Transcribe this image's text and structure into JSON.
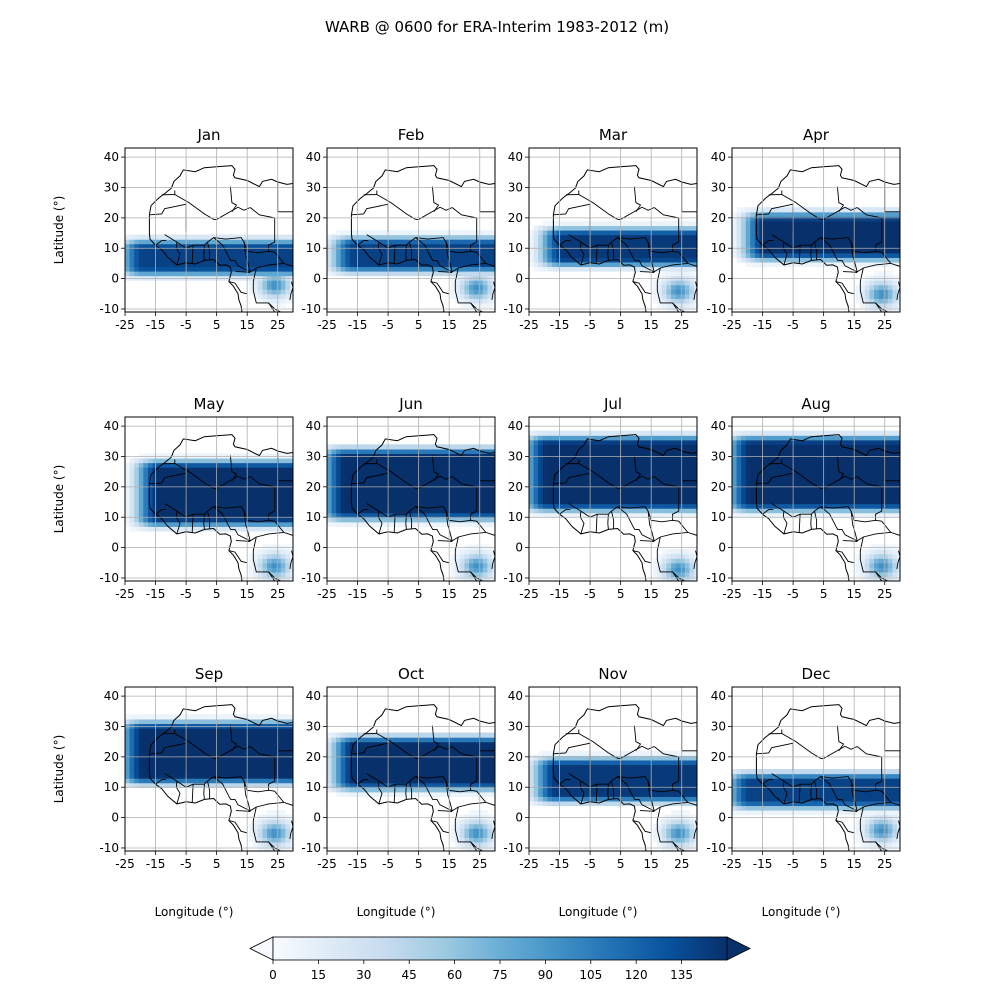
{
  "title": "WARB @ 0600 for ERA-Interim 1983-2012 (m)",
  "chart_data": {
    "type": "heatmap",
    "title": "WARB @ 0600 for ERA-Interim 1983-2012 (m)",
    "xlabel": "Longitude (°)",
    "ylabel": "Latitude (°)",
    "xlim": [
      -25,
      30
    ],
    "ylim": [
      -11,
      43
    ],
    "xticks": [
      -25,
      -15,
      -5,
      5,
      15,
      25
    ],
    "yticks": [
      -10,
      0,
      10,
      20,
      30,
      40
    ],
    "grid": true,
    "colormap": "Blues",
    "colorbar": {
      "ticks": [
        0,
        15,
        30,
        45,
        60,
        75,
        90,
        105,
        120,
        135
      ],
      "min": 0,
      "max": 150,
      "extend": "both",
      "position": "bottom"
    },
    "panels": [
      {
        "month": "Jan",
        "band_south": 2,
        "band_north": 12,
        "west_edge": -25,
        "peak": 140,
        "south_core": -2
      },
      {
        "month": "Feb",
        "band_south": 3,
        "band_north": 13,
        "west_edge": -22,
        "peak": 140,
        "south_core": -3
      },
      {
        "month": "Mar",
        "band_south": 5,
        "band_north": 16,
        "west_edge": -20,
        "peak": 145,
        "south_core": -4
      },
      {
        "month": "Apr",
        "band_south": 7,
        "band_north": 21,
        "west_edge": -20,
        "peak": 150,
        "south_core": -5
      },
      {
        "month": "May",
        "band_south": 8,
        "band_north": 28,
        "west_edge": -20,
        "peak": 150,
        "south_core": -6
      },
      {
        "month": "Jun",
        "band_south": 10,
        "band_north": 32,
        "west_edge": -25,
        "peak": 150,
        "south_core": -6
      },
      {
        "month": "Jul",
        "band_south": 13,
        "band_north": 36,
        "west_edge": -25,
        "peak": 150,
        "south_core": -7
      },
      {
        "month": "Aug",
        "band_south": 13,
        "band_north": 36,
        "west_edge": -25,
        "peak": 150,
        "south_core": -6
      },
      {
        "month": "Sep",
        "band_south": 12,
        "band_north": 31,
        "west_edge": -25,
        "peak": 150,
        "south_core": -5
      },
      {
        "month": "Oct",
        "band_south": 10,
        "band_north": 26,
        "west_edge": -22,
        "peak": 150,
        "south_core": -5
      },
      {
        "month": "Nov",
        "band_south": 6,
        "band_north": 19,
        "west_edge": -22,
        "peak": 145,
        "south_core": -5
      },
      {
        "month": "Dec",
        "band_south": 4,
        "band_north": 14,
        "west_edge": -25,
        "peak": 140,
        "south_core": -4
      }
    ]
  }
}
